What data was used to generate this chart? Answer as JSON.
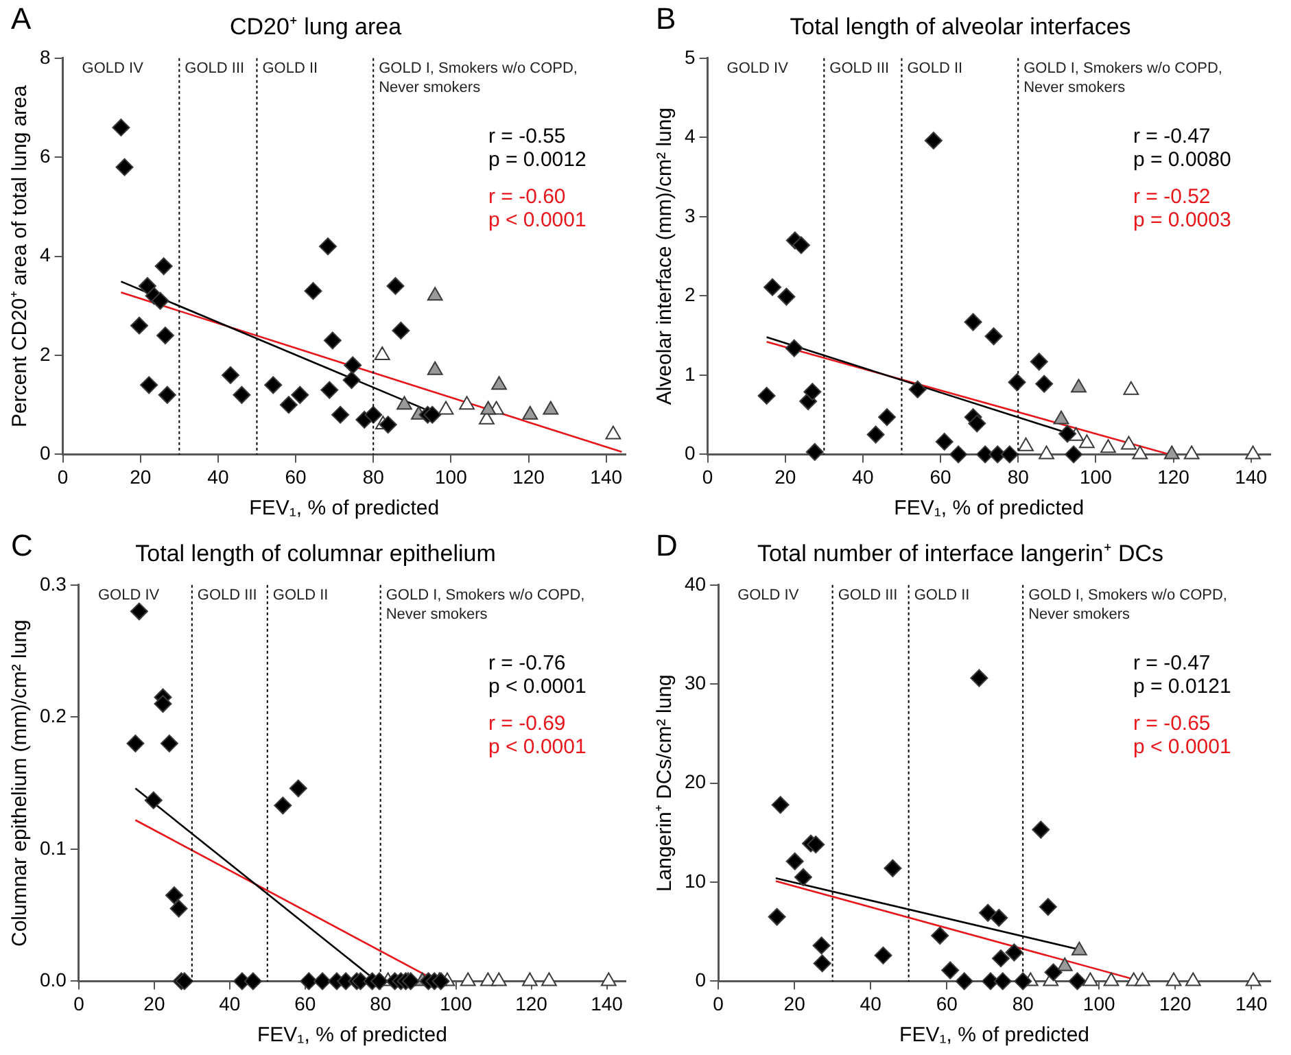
{
  "chart_data": [
    {
      "type": "scatter",
      "title": "CD20⁺ lung area",
      "xlabel": "FEV₁, % of predicted",
      "ylabel": "Percent CD20⁺ area of total lung area",
      "xlim": [
        0,
        145
      ],
      "xticks": [
        0,
        20,
        40,
        60,
        80,
        100,
        120,
        140
      ],
      "ylim": [
        0,
        8
      ],
      "yticks": [
        0,
        2,
        4,
        6,
        8
      ],
      "legend": "top right",
      "annotations": [
        "A",
        "GOLD IV",
        "GOLD III",
        "GOLD II",
        "GOLD I, Smokers w/o COPD,\nNever smokers"
      ],
      "ref_lines": [
        {
          "axis": "x",
          "value": 30,
          "color": "#000000",
          "line_style": "dotted"
        },
        {
          "axis": "x",
          "value": 50,
          "color": "#000000",
          "line_style": "dotted"
        },
        {
          "axis": "x",
          "value": 80,
          "color": "#000000",
          "line_style": "dotted"
        }
      ],
      "series": [
        {
          "type": "scatter",
          "marker": "diamond",
          "color": "#000000",
          "x": [
            15,
            15.9,
            26,
            21.8,
            23.5,
            25.1,
            19.7,
            26.4,
            22.2,
            26.9,
            43.2,
            46.1,
            54.2,
            58.2,
            61.1,
            64.5,
            68.3,
            69.5,
            68.7,
            71.5,
            74.7,
            74.4,
            77.7,
            80,
            83.8,
            85.7,
            87.1,
            94,
            95.2
          ],
          "values": [
            6.6,
            5.8,
            3.8,
            3.4,
            3.2,
            3.1,
            2.6,
            2.4,
            1.4,
            1.2,
            1.6,
            1.2,
            1.4,
            1.0,
            1.2,
            3.3,
            4.2,
            2.3,
            1.3,
            0.8,
            1.8,
            1.5,
            0.7,
            0.8,
            0.6,
            3.4,
            2.5,
            0.8,
            0.8
          ]
        },
        {
          "type": "scatter",
          "marker": "triangle",
          "color": "#9a9a9a",
          "x": [
            95.9,
            95.9,
            88,
            91.7,
            112.4,
            120.4,
            125.7,
            109.6
          ],
          "values": [
            3.2,
            1.7,
            1.0,
            0.8,
            1.4,
            0.8,
            0.9,
            0.9
          ]
        },
        {
          "type": "scatter",
          "marker": "triangle",
          "color": "#ffffff",
          "x": [
            82.3,
            82.5,
            98.7,
            104.1,
            109.2,
            111.7,
            141.8
          ],
          "values": [
            2.0,
            0.6,
            0.9,
            1.0,
            0.7,
            0.9,
            0.4
          ]
        },
        {
          "type": "line",
          "name": "r = -0.55\np = 0.0012",
          "color": "#000000",
          "x": [
            15,
            94
          ],
          "values": [
            3.49,
            0.89
          ]
        },
        {
          "type": "line",
          "name": "r = -0.60\np < 0.0001",
          "color": "#e8151b",
          "x": [
            15,
            144
          ],
          "values": [
            3.27,
            0.05
          ]
        }
      ]
    },
    {
      "type": "scatter",
      "title": "Total length of alveolar interfaces",
      "xlabel": "FEV₁, % of predicted",
      "ylabel": "Alveolar interface (mm)/cm² lung",
      "xlim": [
        0,
        145
      ],
      "xticks": [
        0,
        20,
        40,
        60,
        80,
        100,
        120,
        140
      ],
      "ylim": [
        0,
        5
      ],
      "yticks": [
        0,
        1,
        2,
        3,
        4,
        5
      ],
      "legend": "top right",
      "annotations": [
        "B",
        "GOLD IV",
        "GOLD III",
        "GOLD II",
        "GOLD I, Smokers w/o COPD,\nNever smokers"
      ],
      "ref_lines": [
        {
          "axis": "x",
          "value": 30,
          "color": "#000000",
          "line_style": "dotted"
        },
        {
          "axis": "x",
          "value": 50,
          "color": "#000000",
          "line_style": "dotted"
        },
        {
          "axis": "x",
          "value": 80,
          "color": "#000000",
          "line_style": "dotted"
        }
      ],
      "series": [
        {
          "type": "scatter",
          "marker": "diamond",
          "color": "#000000",
          "x": [
            15.2,
            16.7,
            20.3,
            22.5,
            24.1,
            22.3,
            25.9,
            27,
            27.6,
            43.3,
            46.2,
            54.1,
            58.2,
            61,
            64.6,
            68.4,
            73.7,
            68.4,
            69.4,
            71.5,
            74.7,
            77.8,
            79.7,
            85.4,
            86.7,
            92.7,
            94.3
          ],
          "values": [
            0.74,
            2.11,
            1.99,
            2.7,
            2.64,
            1.34,
            0.67,
            0.79,
            0.03,
            0.25,
            0.47,
            0.82,
            3.96,
            0.16,
            0,
            1.67,
            1.49,
            0.47,
            0.39,
            0,
            0,
            0,
            0.91,
            1.17,
            0.89,
            0.26,
            0
          ]
        },
        {
          "type": "scatter",
          "marker": "triangle",
          "color": "#9a9a9a",
          "x": [
            91.1,
            95.6,
            119.6
          ],
          "values": [
            0.44,
            0.84,
            0
          ]
        },
        {
          "type": "scatter",
          "marker": "triangle",
          "color": "#ffffff",
          "x": [
            82,
            87.3,
            94.9,
            97.7,
            103.2,
            108.5,
            109.1,
            111.4,
            124.7,
            140.5
          ],
          "values": [
            0.1,
            0,
            0.23,
            0.14,
            0.08,
            0.12,
            0.81,
            0,
            0,
            0
          ]
        },
        {
          "type": "line",
          "name": "r = -0.47\np = 0.0080",
          "color": "#000000",
          "x": [
            15.2,
            94
          ],
          "values": [
            1.48,
            0.25
          ]
        },
        {
          "type": "line",
          "name": "r = -0.52\np = 0.0003",
          "color": "#e8151b",
          "x": [
            15.2,
            119
          ],
          "values": [
            1.42,
            0
          ]
        }
      ]
    },
    {
      "type": "scatter",
      "title": "Total length of columnar epithelium",
      "xlabel": "FEV₁, % of predicted",
      "ylabel": "Columnar epithelium (mm)/cm² lung",
      "xlim": [
        0,
        145
      ],
      "xticks": [
        0,
        20,
        40,
        60,
        80,
        100,
        120,
        140
      ],
      "ylim": [
        0,
        0.3
      ],
      "yticks": [
        {
          "value": 0,
          "label": "0.0"
        },
        0.1,
        0.2,
        0.3
      ],
      "legend": "top right",
      "annotations": [
        "C",
        "GOLD IV",
        "GOLD III",
        "GOLD II",
        "GOLD I, Smokers w/o COPD,\nNever smokers"
      ],
      "ref_lines": [
        {
          "axis": "x",
          "value": 30,
          "color": "#000000",
          "line_style": "dotted"
        },
        {
          "axis": "x",
          "value": 50,
          "color": "#000000",
          "line_style": "dotted"
        },
        {
          "axis": "x",
          "value": 80,
          "color": "#000000",
          "line_style": "dotted"
        }
      ],
      "series": [
        {
          "type": "scatter",
          "marker": "diamond",
          "color": "#000000",
          "x": [
            16,
            15,
            22.3,
            22.3,
            24,
            19.8,
            25.3,
            26.5,
            54.1,
            58.2,
            27.2,
            28,
            43.3,
            46.2,
            61,
            64.6,
            68.4,
            70.8,
            73.7,
            74.7,
            77.8,
            79.7,
            83.8,
            85.4,
            86.7,
            88,
            92.7,
            94.3,
            96
          ],
          "values": [
            0.28,
            0.18,
            0.215,
            0.21,
            0.18,
            0.137,
            0.065,
            0.055,
            0.133,
            0.146,
            0,
            0,
            0,
            0,
            0,
            0,
            0,
            0,
            0,
            0,
            0,
            0,
            0,
            0,
            0,
            0,
            0,
            0,
            0
          ]
        },
        {
          "type": "scatter",
          "marker": "triangle",
          "color": "#9a9a9a",
          "x": [
            91.1,
            95.6
          ],
          "values": [
            0,
            0
          ]
        },
        {
          "type": "scatter",
          "marker": "triangle",
          "color": "#ffffff",
          "x": [
            82,
            87.3,
            97.7,
            103.2,
            108.5,
            111.4,
            119.6,
            124.7,
            140.5
          ],
          "values": [
            0,
            0,
            0,
            0,
            0,
            0,
            0,
            0,
            0
          ]
        },
        {
          "type": "line",
          "name": "r = -0.76\np < 0.0001",
          "color": "#000000",
          "x": [
            15,
            79
          ],
          "values": [
            0.146,
            0
          ]
        },
        {
          "type": "line",
          "name": "r = -0.69\np < 0.0001",
          "color": "#e8151b",
          "x": [
            15,
            95
          ],
          "values": [
            0.122,
            0
          ]
        }
      ]
    },
    {
      "type": "scatter",
      "title": "Total number of interface langerin⁺ DCs",
      "xlabel": "FEV₁, % of predicted",
      "ylabel": "Langerin⁺ DCs/cm² lung",
      "xlim": [
        0,
        145
      ],
      "xticks": [
        0,
        20,
        40,
        60,
        80,
        100,
        120,
        140
      ],
      "ylim": [
        0,
        40
      ],
      "yticks": [
        0,
        10,
        20,
        30,
        40
      ],
      "legend": "top right",
      "annotations": [
        "D",
        "GOLD IV",
        "GOLD III",
        "GOLD II",
        "GOLD I, Smokers w/o COPD,\nNever smokers"
      ],
      "ref_lines": [
        {
          "axis": "x",
          "value": 30,
          "color": "#000000",
          "line_style": "dotted"
        },
        {
          "axis": "x",
          "value": 50,
          "color": "#000000",
          "line_style": "dotted"
        },
        {
          "axis": "x",
          "value": 80,
          "color": "#000000",
          "line_style": "dotted"
        }
      ],
      "series": [
        {
          "type": "scatter",
          "marker": "diamond",
          "color": "#000000",
          "x": [
            16.3,
            15.4,
            20.1,
            22.3,
            24.3,
            25.6,
            27.1,
            27.3,
            45.8,
            43.3,
            58.2,
            60.9,
            68.5,
            70.8,
            73.7,
            74.2,
            77.7,
            84.7,
            86.6,
            64.6,
            71.5,
            74.7,
            80,
            88,
            94.3
          ],
          "values": [
            17.8,
            6.5,
            12.1,
            10.5,
            13.9,
            13.8,
            3.6,
            1.8,
            11.4,
            2.6,
            4.6,
            1.1,
            30.6,
            6.9,
            6.4,
            2.3,
            2.9,
            15.3,
            7.5,
            0,
            0,
            0,
            0,
            0.9,
            0
          ]
        },
        {
          "type": "scatter",
          "marker": "triangle",
          "color": "#9a9a9a",
          "x": [
            94.8,
            91
          ],
          "values": [
            3.1,
            1.5
          ]
        },
        {
          "type": "scatter",
          "marker": "triangle",
          "color": "#ffffff",
          "x": [
            82,
            87.3,
            97.7,
            103.2,
            109.1,
            111.4,
            119.6,
            124.7,
            140.5
          ],
          "values": [
            0,
            0,
            0,
            0,
            0,
            0,
            0,
            0,
            0
          ]
        },
        {
          "type": "line",
          "name": "r = -0.47\np = 0.0121",
          "color": "#000000",
          "x": [
            15.1,
            94.8
          ],
          "values": [
            10.4,
            3.2
          ]
        },
        {
          "type": "line",
          "name": "r = -0.65\np < 0.0001",
          "color": "#e8151b",
          "x": [
            15.1,
            111
          ],
          "values": [
            10.1,
            0
          ]
        }
      ]
    }
  ]
}
